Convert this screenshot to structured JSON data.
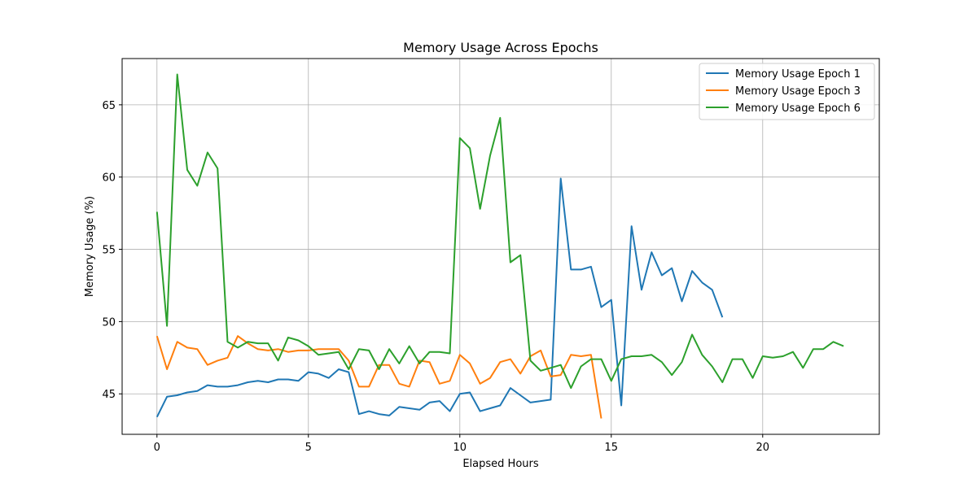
{
  "chart_data": {
    "type": "line",
    "title": "Memory Usage Across Epochs",
    "xlabel": "Elapsed Hours",
    "ylabel": "Memory Usage (%)",
    "xlim": [
      -1.15,
      23.85
    ],
    "ylim": [
      42.2,
      68.2
    ],
    "xticks": [
      0,
      5,
      10,
      15,
      20
    ],
    "yticks": [
      45,
      50,
      55,
      60,
      65
    ],
    "grid": true,
    "legend_position": "top-right",
    "series": [
      {
        "name": "Memory Usage Epoch 1",
        "color": "#1f77b4",
        "x": [
          0,
          0.33,
          0.67,
          1,
          1.33,
          1.67,
          2,
          2.33,
          2.67,
          3,
          3.33,
          3.67,
          4,
          4.33,
          4.67,
          5,
          5.33,
          5.67,
          6,
          6.33,
          6.67,
          7,
          7.33,
          7.67,
          8,
          8.33,
          8.67,
          9,
          9.33,
          9.67,
          10,
          10.33,
          10.67,
          11,
          11.33,
          11.67,
          12,
          12.33,
          12.67,
          13,
          13.33,
          13.67,
          14,
          14.33,
          14.67,
          15,
          15.33,
          15.67,
          16,
          16.33,
          16.67,
          17,
          17.33,
          17.67,
          18,
          18.33,
          18.67
        ],
        "y": [
          43.4,
          44.8,
          44.9,
          45.1,
          45.2,
          45.6,
          45.5,
          45.5,
          45.6,
          45.8,
          45.9,
          45.8,
          46.0,
          46.0,
          45.9,
          46.5,
          46.4,
          46.1,
          46.7,
          46.5,
          43.6,
          43.8,
          43.6,
          43.5,
          44.1,
          44.0,
          43.9,
          44.4,
          44.5,
          43.8,
          45.0,
          45.1,
          43.8,
          44.0,
          44.2,
          45.4,
          44.9,
          44.4,
          44.5,
          44.6,
          59.9,
          53.6,
          53.6,
          53.8,
          51.0,
          51.5,
          44.2,
          56.6,
          52.2,
          54.8,
          53.2,
          53.7,
          51.4,
          53.5,
          52.7,
          52.2,
          50.3
        ]
      },
      {
        "name": "Memory Usage Epoch 3",
        "color": "#ff7f0e",
        "x": [
          0,
          0.33,
          0.67,
          1,
          1.33,
          1.67,
          2,
          2.33,
          2.67,
          3,
          3.33,
          3.67,
          4,
          4.33,
          4.67,
          5,
          5.33,
          5.67,
          6,
          6.33,
          6.67,
          7,
          7.33,
          7.67,
          8,
          8.33,
          8.67,
          9,
          9.33,
          9.67,
          10,
          10.33,
          10.67,
          11,
          11.33,
          11.67,
          12,
          12.33,
          12.67,
          13,
          13.33,
          13.67,
          14,
          14.33,
          14.67
        ],
        "y": [
          49.0,
          46.7,
          48.6,
          48.2,
          48.1,
          47.0,
          47.3,
          47.5,
          49.0,
          48.5,
          48.1,
          48.0,
          48.1,
          47.9,
          48.0,
          48.0,
          48.1,
          48.1,
          48.1,
          47.3,
          45.5,
          45.5,
          47.0,
          47.0,
          45.7,
          45.5,
          47.3,
          47.2,
          45.7,
          45.9,
          47.7,
          47.1,
          45.7,
          46.1,
          47.2,
          47.4,
          46.4,
          47.6,
          48.0,
          46.2,
          46.3,
          47.7,
          47.6,
          47.7,
          43.3
        ]
      },
      {
        "name": "Memory Usage Epoch 6",
        "color": "#2ca02c",
        "x": [
          0,
          0.33,
          0.67,
          1,
          1.33,
          1.67,
          2,
          2.33,
          2.67,
          3,
          3.33,
          3.67,
          4,
          4.33,
          4.67,
          5,
          5.33,
          5.67,
          6,
          6.33,
          6.67,
          7,
          7.33,
          7.67,
          8,
          8.33,
          8.67,
          9,
          9.33,
          9.67,
          10,
          10.33,
          10.67,
          11,
          11.33,
          11.67,
          12,
          12.33,
          12.67,
          13,
          13.33,
          13.67,
          14,
          14.33,
          14.67,
          15,
          15.33,
          15.67,
          16,
          16.33,
          16.67,
          17,
          17.33,
          17.67,
          18,
          18.33,
          18.67,
          19,
          19.33,
          19.67,
          20,
          20.33,
          20.67,
          21,
          21.33,
          21.67,
          22,
          22.33,
          22.67
        ],
        "y": [
          57.6,
          49.7,
          67.1,
          60.5,
          59.4,
          61.7,
          60.6,
          48.6,
          48.2,
          48.6,
          48.5,
          48.5,
          47.3,
          48.9,
          48.7,
          48.3,
          47.7,
          47.8,
          47.9,
          46.7,
          48.1,
          48.0,
          46.7,
          48.1,
          47.1,
          48.3,
          47.1,
          47.9,
          47.9,
          47.8,
          62.7,
          62.0,
          57.8,
          61.5,
          64.1,
          54.1,
          54.6,
          47.3,
          46.6,
          46.8,
          47.0,
          45.4,
          46.9,
          47.4,
          47.4,
          45.9,
          47.4,
          47.6,
          47.6,
          47.7,
          47.2,
          46.3,
          47.2,
          49.1,
          47.7,
          46.9,
          45.8,
          47.4,
          47.4,
          46.1,
          47.6,
          47.5,
          47.6,
          47.9,
          46.8,
          48.1,
          48.1,
          48.6,
          48.3
        ]
      }
    ]
  }
}
